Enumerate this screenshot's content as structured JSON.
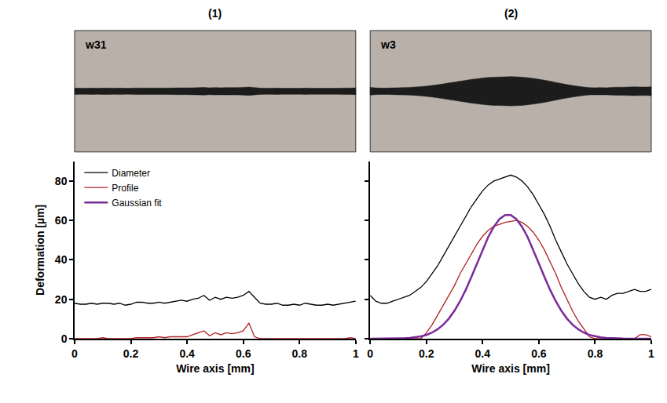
{
  "chart_data": [
    {
      "type": "line",
      "title": "(1)",
      "annotations": [
        "w31"
      ],
      "x_label": "Wire axis [mm]",
      "y_label": "Deformation [µm]",
      "xlim": [
        0,
        1
      ],
      "xticks": [
        0,
        0.2,
        0.4,
        0.6,
        0.8,
        1
      ],
      "ylim": [
        0,
        90
      ],
      "yticks": [
        0,
        20,
        40,
        60,
        80
      ],
      "grid": false,
      "legend": "upper left",
      "x": [
        0,
        0.02,
        0.04,
        0.06,
        0.08,
        0.1,
        0.12,
        0.14,
        0.16,
        0.18,
        0.2,
        0.22,
        0.24,
        0.26,
        0.28,
        0.3,
        0.32,
        0.34,
        0.36,
        0.38,
        0.4,
        0.42,
        0.44,
        0.46,
        0.48,
        0.5,
        0.52,
        0.54,
        0.56,
        0.58,
        0.6,
        0.62,
        0.64,
        0.66,
        0.68,
        0.7,
        0.72,
        0.74,
        0.76,
        0.78,
        0.8,
        0.82,
        0.84,
        0.86,
        0.88,
        0.9,
        0.92,
        0.94,
        0.96,
        0.98,
        1
      ],
      "series": [
        {
          "name": "Diameter",
          "color": "#000000",
          "values": [
            18,
            17.5,
            17.5,
            18,
            17.5,
            18,
            18,
            17.5,
            18,
            17,
            17.5,
            18.5,
            18.5,
            18,
            18,
            18.5,
            18,
            18.5,
            19,
            19.5,
            19,
            20,
            20.5,
            22,
            19.5,
            21,
            20,
            21,
            20.5,
            21,
            22,
            24,
            21,
            18,
            17.5,
            17.5,
            18,
            17,
            17,
            17.5,
            17,
            18,
            17.5,
            17,
            17,
            17.5,
            17,
            17.5,
            18,
            18.5,
            19
          ]
        },
        {
          "name": "Profile",
          "color": "#b22222",
          "values": [
            0,
            0,
            0,
            0,
            0,
            0.5,
            0,
            0,
            0,
            0,
            0,
            0.5,
            0.5,
            0.5,
            0.5,
            1,
            0.5,
            1,
            1,
            1,
            1,
            2,
            3,
            4,
            1.5,
            3,
            2,
            3,
            2.5,
            3,
            4,
            8,
            1,
            0,
            0,
            0,
            0,
            0,
            0,
            0,
            0,
            0,
            0,
            0,
            0,
            0,
            0,
            0,
            0,
            0.5,
            0
          ]
        }
      ]
    },
    {
      "type": "line",
      "title": "(2)",
      "annotations": [
        "w3"
      ],
      "x_label": "Wire axis [mm]",
      "xlim": [
        0,
        1
      ],
      "xticks": [
        0,
        0.2,
        0.4,
        0.6,
        0.8,
        1
      ],
      "ylim": [
        0,
        90
      ],
      "yticks": [
        0,
        20,
        40,
        60,
        80
      ],
      "grid": false,
      "tick_labels": "x",
      "x": [
        0,
        0.02,
        0.04,
        0.06,
        0.08,
        0.1,
        0.12,
        0.14,
        0.16,
        0.18,
        0.2,
        0.22,
        0.24,
        0.26,
        0.28,
        0.3,
        0.32,
        0.34,
        0.36,
        0.38,
        0.4,
        0.42,
        0.44,
        0.46,
        0.48,
        0.5,
        0.52,
        0.54,
        0.56,
        0.58,
        0.6,
        0.62,
        0.64,
        0.66,
        0.68,
        0.7,
        0.72,
        0.74,
        0.76,
        0.78,
        0.8,
        0.82,
        0.84,
        0.86,
        0.88,
        0.9,
        0.92,
        0.94,
        0.96,
        0.98,
        1
      ],
      "series": [
        {
          "name": "Diameter",
          "color": "#000000",
          "values": [
            22,
            19,
            18,
            18,
            19,
            20,
            21,
            22,
            24,
            26,
            29,
            33,
            37,
            42,
            47,
            52,
            57,
            62,
            67,
            71,
            75,
            78,
            80,
            81,
            82,
            83,
            82,
            80,
            77,
            73,
            68,
            63,
            57,
            50,
            44,
            38,
            33,
            28,
            24,
            21,
            20,
            21,
            20,
            22,
            23,
            23,
            24,
            25,
            24,
            24,
            25
          ]
        },
        {
          "name": "Profile",
          "color": "#b22222",
          "values": [
            0,
            0,
            0,
            0,
            0,
            0,
            0,
            0,
            0,
            0,
            3,
            7,
            12,
            17,
            22,
            27,
            33,
            38,
            43,
            48,
            52,
            55,
            57,
            58,
            59,
            59.5,
            60,
            59,
            57,
            54,
            50,
            45,
            39,
            33,
            26,
            20,
            14,
            9,
            5,
            1,
            0,
            0,
            0,
            0,
            0,
            0,
            0,
            0,
            2,
            2,
            1
          ]
        },
        {
          "name": "Gaussian fit",
          "color": "#7b2a9a",
          "values": [
            0,
            0,
            0.015,
            0.03,
            0.06,
            0.12,
            0.22,
            0.4,
            0.7,
            1.2,
            1.9,
            3.1,
            4.8,
            7.1,
            10.2,
            14.2,
            19.1,
            24.8,
            31.3,
            38.2,
            45.1,
            51.6,
            56.8,
            60.7,
            62.7,
            62.7,
            60.7,
            56.8,
            51.6,
            45.1,
            38.2,
            31.3,
            24.8,
            19.1,
            14.2,
            10.2,
            7.1,
            4.8,
            3.1,
            1.9,
            1.2,
            0.7,
            0.4,
            0.22,
            0.12,
            0.06,
            0.03,
            0.015,
            0,
            0,
            0
          ]
        }
      ]
    }
  ]
}
